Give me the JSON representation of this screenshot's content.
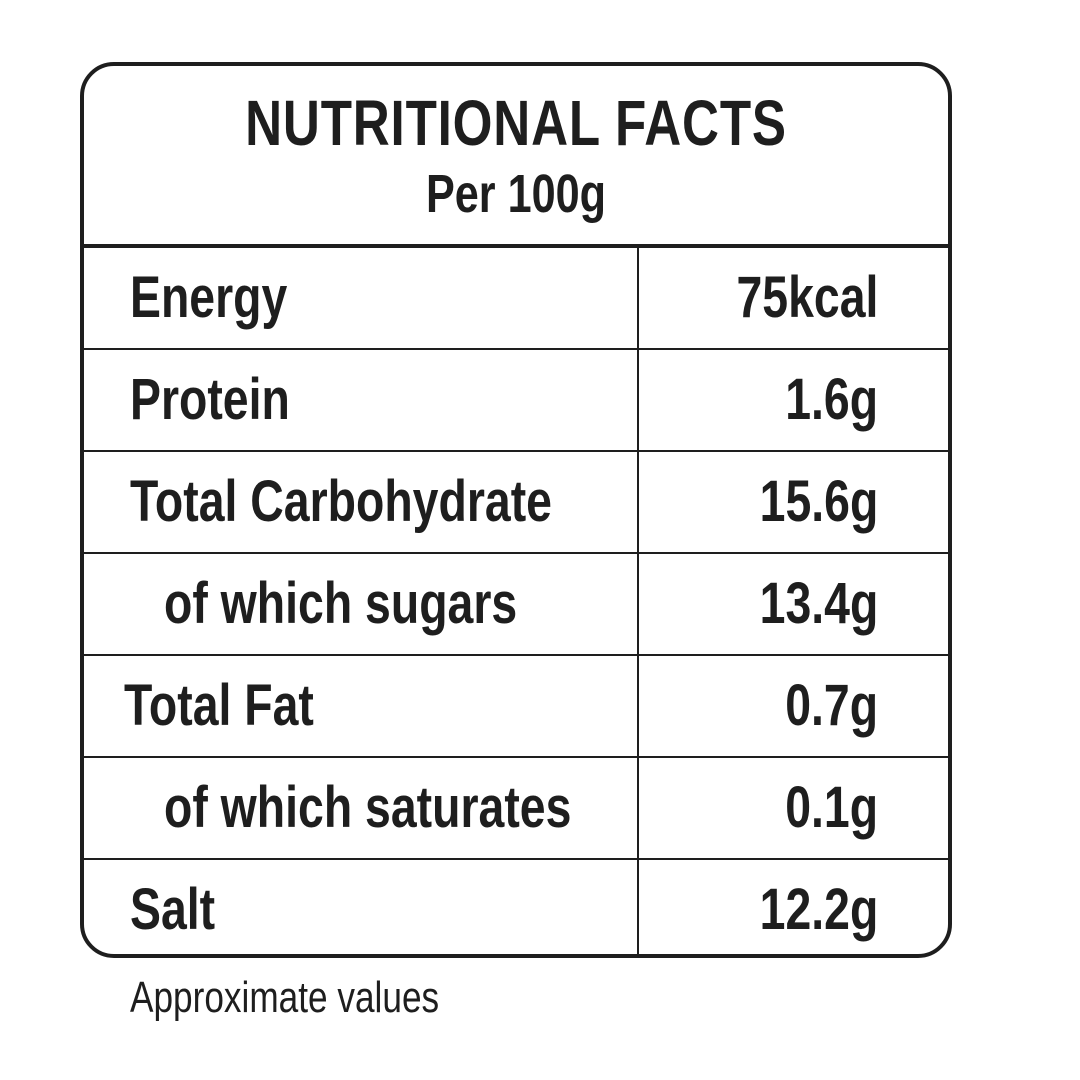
{
  "header": {
    "title": "NUTRITIONAL FACTS",
    "subtitle": "Per 100g"
  },
  "table": {
    "rows": [
      [
        "Energy",
        "75kcal"
      ],
      [
        "Protein",
        "1.6g"
      ],
      [
        "Total Carbohydrate",
        "15.6g"
      ],
      [
        "of which sugars",
        "13.4g"
      ],
      [
        "Total Fat",
        "0.7g"
      ],
      [
        "of which saturates",
        "0.1g"
      ],
      [
        "Salt",
        "12.2g"
      ]
    ]
  },
  "footnote": "Approximate values"
}
